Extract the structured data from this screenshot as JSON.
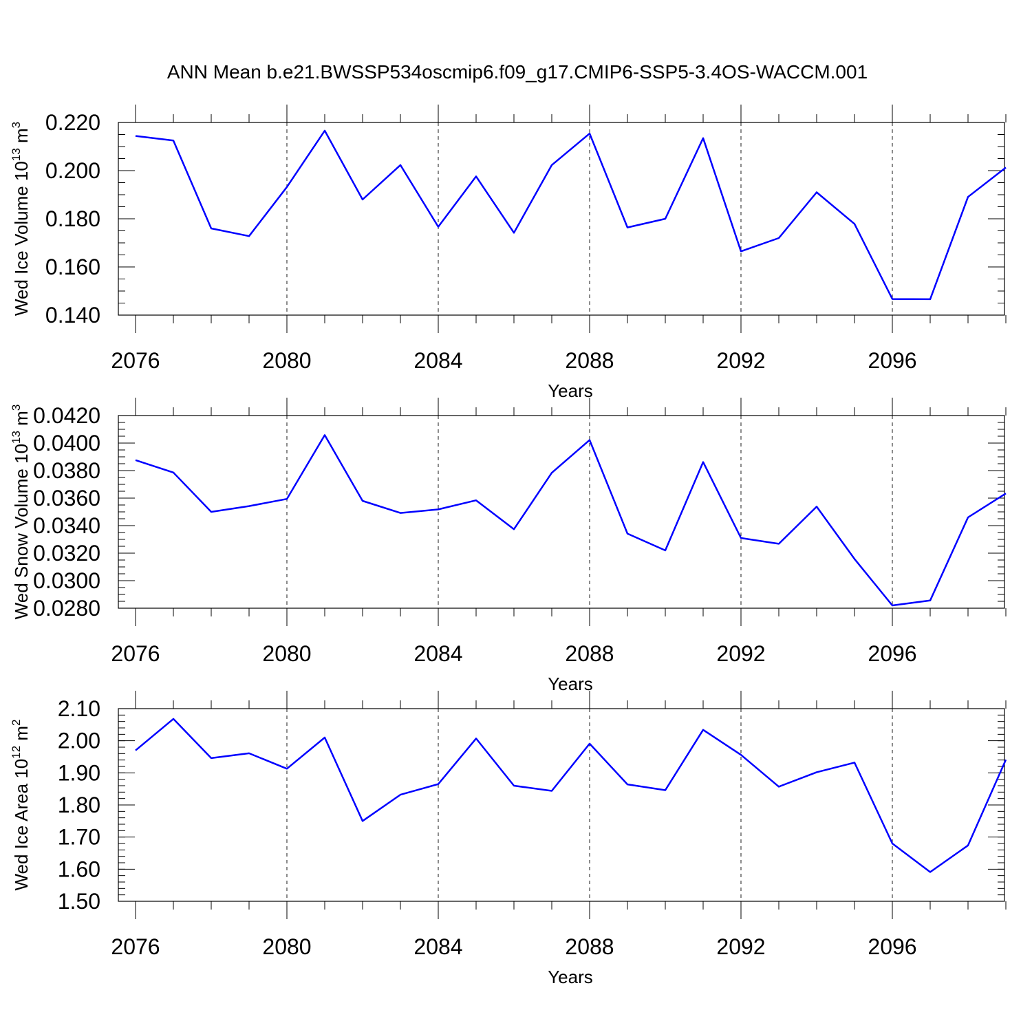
{
  "title": "ANN Mean b.e21.BWSSP534oscmip6.f09_g17.CMIP6-SSP5-3.4OS-WACCM.001",
  "colors": {
    "series": "#0000ff",
    "axes": "#000000",
    "background": "#ffffff"
  },
  "chart_data": [
    {
      "type": "line",
      "ylabel": {
        "text": "Wed Ice Volume 10",
        "exponent": "13",
        "unit": " m",
        "unit_exponent": "3"
      },
      "xlabel": "Years",
      "xlim": [
        2076,
        2099
      ],
      "ylim": [
        0.14,
        0.22
      ],
      "xticks": [
        2076,
        2080,
        2084,
        2088,
        2092,
        2096
      ],
      "xtick_labels": [
        "2076",
        "2080",
        "2084",
        "2088",
        "2092",
        "2096"
      ],
      "yticks": [
        0.14,
        0.16,
        0.18,
        0.2,
        0.22
      ],
      "ytick_labels": [
        "0.140",
        "0.160",
        "0.180",
        "0.200",
        "0.220"
      ],
      "y_minor_step": 0.005,
      "grid": "dashed vertical at major x ticks",
      "x": [
        2076,
        2077,
        2078,
        2079,
        2080,
        2081,
        2082,
        2083,
        2084,
        2085,
        2086,
        2087,
        2088,
        2089,
        2090,
        2091,
        2092,
        2093,
        2094,
        2095,
        2096,
        2097,
        2098,
        2099
      ],
      "y": [
        0.2144,
        0.2125,
        0.176,
        0.1728,
        0.1932,
        0.2166,
        0.188,
        0.2023,
        0.1767,
        0.1976,
        0.1742,
        0.2023,
        0.2154,
        0.1764,
        0.18,
        0.2135,
        0.1665,
        0.172,
        0.191,
        0.1779,
        0.1467,
        0.1466,
        0.1891,
        0.2013
      ]
    },
    {
      "type": "line",
      "ylabel": {
        "text": "Wed Snow Volume 10",
        "exponent": "13",
        "unit": " m",
        "unit_exponent": "3"
      },
      "xlabel": "Years",
      "xlim": [
        2076,
        2099
      ],
      "ylim": [
        0.028,
        0.042
      ],
      "xticks": [
        2076,
        2080,
        2084,
        2088,
        2092,
        2096
      ],
      "xtick_labels": [
        "2076",
        "2080",
        "2084",
        "2088",
        "2092",
        "2096"
      ],
      "yticks": [
        0.028,
        0.03,
        0.032,
        0.034,
        0.036,
        0.038,
        0.04,
        0.042
      ],
      "ytick_labels": [
        "0.0280",
        "0.0300",
        "0.0320",
        "0.0340",
        "0.0360",
        "0.0380",
        "0.0400",
        "0.0420"
      ],
      "y_minor_step": 0.0005,
      "grid": "dashed vertical at major x ticks",
      "x": [
        2076,
        2077,
        2078,
        2079,
        2080,
        2081,
        2082,
        2083,
        2084,
        2085,
        2086,
        2087,
        2088,
        2089,
        2090,
        2091,
        2092,
        2093,
        2094,
        2095,
        2096,
        2097,
        2098,
        2099
      ],
      "y": [
        0.03876,
        0.03786,
        0.035,
        0.03542,
        0.03594,
        0.04058,
        0.0358,
        0.03492,
        0.03518,
        0.03584,
        0.03374,
        0.03784,
        0.04022,
        0.03342,
        0.0322,
        0.03862,
        0.0331,
        0.03268,
        0.03538,
        0.03158,
        0.0282,
        0.02856,
        0.0346,
        0.03634
      ]
    },
    {
      "type": "line",
      "ylabel": {
        "text": "Wed Ice Area 10",
        "exponent": "12",
        "unit": " m",
        "unit_exponent": "2"
      },
      "xlabel": "Years",
      "xlim": [
        2076,
        2099
      ],
      "ylim": [
        1.5,
        2.1
      ],
      "xticks": [
        2076,
        2080,
        2084,
        2088,
        2092,
        2096
      ],
      "xtick_labels": [
        "2076",
        "2080",
        "2084",
        "2088",
        "2092",
        "2096"
      ],
      "yticks": [
        1.5,
        1.6,
        1.7,
        1.8,
        1.9,
        2.0,
        2.1
      ],
      "ytick_labels": [
        "1.50",
        "1.60",
        "1.70",
        "1.80",
        "1.90",
        "2.00",
        "2.10"
      ],
      "y_minor_step": 0.02,
      "grid": "dashed vertical at major x ticks",
      "x": [
        2076,
        2077,
        2078,
        2079,
        2080,
        2081,
        2082,
        2083,
        2084,
        2085,
        2086,
        2087,
        2088,
        2089,
        2090,
        2091,
        2092,
        2093,
        2094,
        2095,
        2096,
        2097,
        2098,
        2099
      ],
      "y": [
        1.97,
        2.068,
        1.946,
        1.961,
        1.913,
        2.01,
        1.75,
        1.832,
        1.865,
        2.007,
        1.86,
        1.844,
        1.991,
        1.864,
        1.846,
        2.034,
        1.956,
        1.857,
        1.902,
        1.932,
        1.68,
        1.591,
        1.674,
        1.941
      ]
    }
  ]
}
